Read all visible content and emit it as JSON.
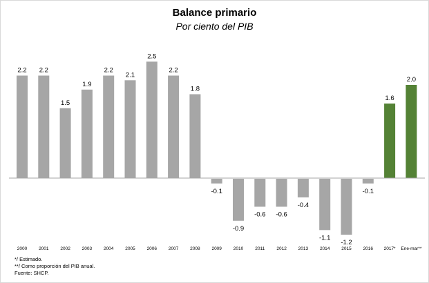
{
  "chart_data": {
    "type": "bar",
    "title": "Balance primario",
    "subtitle": "Por ciento del PIB",
    "categories": [
      "2000",
      "2001",
      "2002",
      "2003",
      "2004",
      "2005",
      "2006",
      "2007",
      "2008",
      "2009",
      "2010",
      "2011",
      "2012",
      "2013",
      "2014",
      "2015",
      "2016",
      "2017*",
      "Ene-mar**"
    ],
    "values": [
      2.2,
      2.2,
      1.5,
      1.9,
      2.2,
      2.1,
      2.5,
      2.2,
      1.8,
      -0.1,
      -0.9,
      -0.6,
      -0.6,
      -0.4,
      -1.1,
      -1.2,
      -0.1,
      1.6,
      2.0
    ],
    "data_labels": [
      "2.2",
      "2.2",
      "1.5",
      "1.9",
      "2.2",
      "2.1",
      "2.5",
      "2.2",
      "1.8",
      "-0.1",
      "-0.9",
      "-0.6",
      "-0.6",
      "-0.4",
      "-1.1",
      "-1.2",
      "-0.1",
      "1.6",
      "2.0"
    ],
    "highlight_categories": [
      "2017*",
      "Ene-mar**"
    ],
    "xlabel": "",
    "ylabel": "",
    "grid": false,
    "legend": "none",
    "colors": {
      "default": "#a6a6a6",
      "highlight": "#548235",
      "axis": "#a6a6a6"
    }
  },
  "notes": [
    "*/ Estimado.",
    "**/ Como proporción del PIB anual.",
    "Fuente: SHCP."
  ]
}
